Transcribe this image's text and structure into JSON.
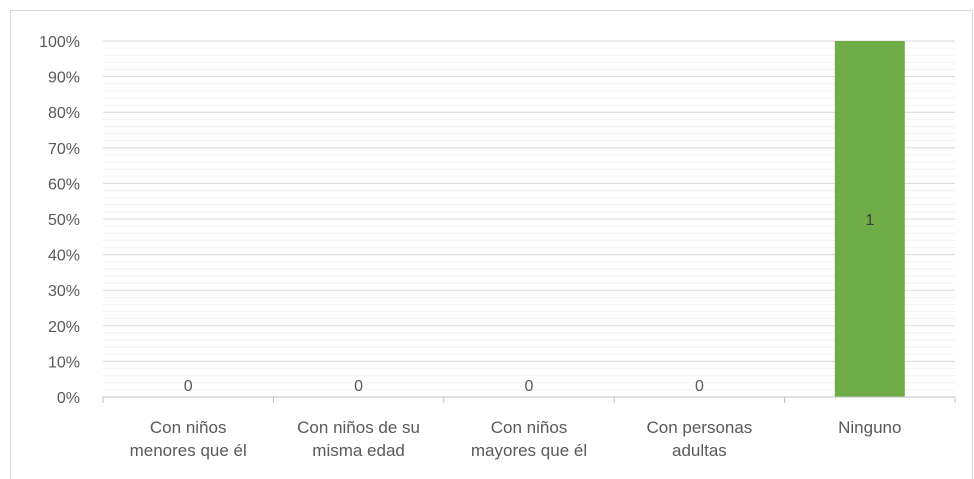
{
  "chart_data": {
    "type": "bar",
    "title": "",
    "categories": [
      [
        "Con niños",
        "menores que él"
      ],
      [
        "Con niños de su",
        "misma edad"
      ],
      [
        "Con niños",
        "mayores que él"
      ],
      [
        "Con personas",
        "adultas"
      ],
      [
        "Ninguno"
      ]
    ],
    "values": [
      0,
      0,
      0,
      0,
      1
    ],
    "percent_values": [
      0,
      0,
      0,
      0,
      100
    ],
    "data_labels": [
      "0",
      "0",
      "0",
      "0",
      "1"
    ],
    "ylim": [
      0,
      100
    ],
    "y_ticks": [
      "0%",
      "10%",
      "20%",
      "30%",
      "40%",
      "50%",
      "60%",
      "70%",
      "80%",
      "90%",
      "100%"
    ],
    "xlabel": "",
    "ylabel": "",
    "grid": true,
    "minor_grid": true,
    "legend": "none",
    "colors": {
      "bar": "#70ad47",
      "grid_major": "#d9d9d9",
      "grid_minor": "#f2f2f2",
      "axis": "#bfbfbf",
      "text": "#595959",
      "label_inside": "#404040"
    }
  }
}
